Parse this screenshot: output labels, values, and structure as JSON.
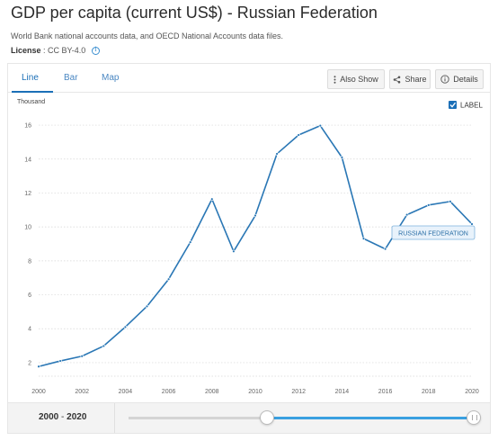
{
  "header": {
    "title": "GDP per capita (current US$) - Russian Federation",
    "source": "World Bank national accounts data, and OECD National Accounts data files.",
    "license_label": "License",
    "license_value": " : CC BY-4.0"
  },
  "tabs": [
    {
      "label": "Line"
    },
    {
      "label": "Bar"
    },
    {
      "label": "Map"
    }
  ],
  "toolbar": {
    "also_show": "Also Show",
    "share": "Share",
    "details": "Details"
  },
  "legend": {
    "label": "LABEL",
    "checked": true
  },
  "colors": {
    "line": "#2a77b5",
    "accent": "#1b6fb7",
    "slider_fill": "#3aa0e0"
  },
  "chart_data": {
    "type": "line",
    "y_unit": "Thousand",
    "x": [
      2000,
      2001,
      2002,
      2003,
      2004,
      2005,
      2006,
      2007,
      2008,
      2009,
      2010,
      2011,
      2012,
      2013,
      2014,
      2015,
      2016,
      2017,
      2018,
      2019,
      2020
    ],
    "series": [
      {
        "name": "RUSSIAN FEDERATION",
        "values": [
          1.77,
          2.1,
          2.38,
          2.98,
          4.1,
          5.32,
          6.92,
          9.1,
          11.64,
          8.56,
          10.67,
          14.31,
          15.42,
          15.97,
          14.1,
          9.31,
          8.7,
          10.72,
          11.29,
          11.5,
          10.17
        ]
      }
    ],
    "x_ticks": [
      "2000",
      "2002",
      "2004",
      "2006",
      "2008",
      "2010",
      "2012",
      "2014",
      "2016",
      "2018",
      "2020"
    ],
    "y_ticks": [
      "2",
      "4",
      "6",
      "8",
      "10",
      "12",
      "14",
      "16"
    ],
    "xlim": [
      2000,
      2020
    ],
    "ylim": [
      1.2,
      16.8
    ],
    "grid": "horizontal dotted",
    "legend_position": "top-right"
  },
  "range": {
    "start": "2000",
    "separator": " - ",
    "end": "2020",
    "start_fraction": 0.4,
    "end_fraction": 1.0
  }
}
